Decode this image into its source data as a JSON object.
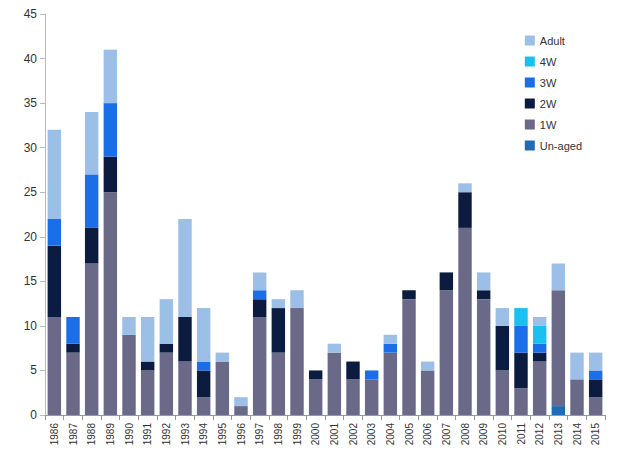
{
  "chart_data": {
    "type": "bar",
    "stacked": true,
    "grid": false,
    "legend": "upper right",
    "categories": [
      "1986",
      "1987",
      "1988",
      "1989",
      "1990",
      "1991",
      "1992",
      "1993",
      "1994",
      "1995",
      "1996",
      "1997",
      "1998",
      "1999",
      "2000",
      "2001",
      "2002",
      "2003",
      "2004",
      "2005",
      "2006",
      "2007",
      "2008",
      "2009",
      "2010",
      "2011",
      "2012",
      "2013",
      "2014",
      "2015"
    ],
    "ylim": [
      0,
      45
    ],
    "yticks": [
      0,
      5,
      10,
      15,
      20,
      25,
      30,
      35,
      40,
      45
    ],
    "series": [
      {
        "name": "Adult",
        "color": "#9bbfe6",
        "values": [
          10,
          0,
          7,
          6,
          2,
          5,
          5,
          11,
          6,
          1,
          1,
          2,
          1,
          2,
          0,
          1,
          0,
          0,
          1,
          0,
          1,
          0,
          1,
          2,
          2,
          0,
          1,
          3,
          3,
          2
        ]
      },
      {
        "name": "4W",
        "color": "#19c0f0",
        "values": [
          0,
          0,
          0,
          0,
          0,
          0,
          0,
          0,
          0,
          0,
          0,
          0,
          0,
          0,
          0,
          0,
          0,
          0,
          0,
          0,
          0,
          0,
          0,
          0,
          0,
          2,
          2,
          0,
          0,
          0
        ]
      },
      {
        "name": "3W",
        "color": "#1a6fe8",
        "values": [
          3,
          3,
          6,
          6,
          0,
          0,
          0,
          0,
          1,
          0,
          0,
          1,
          0,
          0,
          0,
          0,
          0,
          1,
          1,
          0,
          0,
          0,
          0,
          0,
          0,
          3,
          1,
          0,
          0,
          1
        ]
      },
      {
        "name": "2W",
        "color": "#0c1c40",
        "values": [
          8,
          1,
          4,
          4,
          0,
          1,
          1,
          5,
          3,
          0,
          0,
          2,
          5,
          0,
          1,
          0,
          2,
          0,
          0,
          1,
          0,
          2,
          4,
          1,
          5,
          4,
          1,
          0,
          0,
          2
        ]
      },
      {
        "name": "1W",
        "color": "#6a6a88",
        "values": [
          11,
          7,
          17,
          25,
          9,
          5,
          7,
          6,
          2,
          6,
          1,
          11,
          7,
          12,
          4,
          7,
          4,
          4,
          7,
          13,
          5,
          14,
          21,
          13,
          5,
          3,
          6,
          13,
          4,
          2
        ]
      },
      {
        "name": "Un-aged",
        "color": "#1f6cb4",
        "values": [
          0,
          0,
          0,
          0,
          0,
          0,
          0,
          0,
          0,
          0,
          0,
          0,
          0,
          0,
          0,
          0,
          0,
          0,
          0,
          0,
          0,
          0,
          0,
          0,
          0,
          0,
          0,
          1,
          0,
          0
        ]
      }
    ]
  }
}
